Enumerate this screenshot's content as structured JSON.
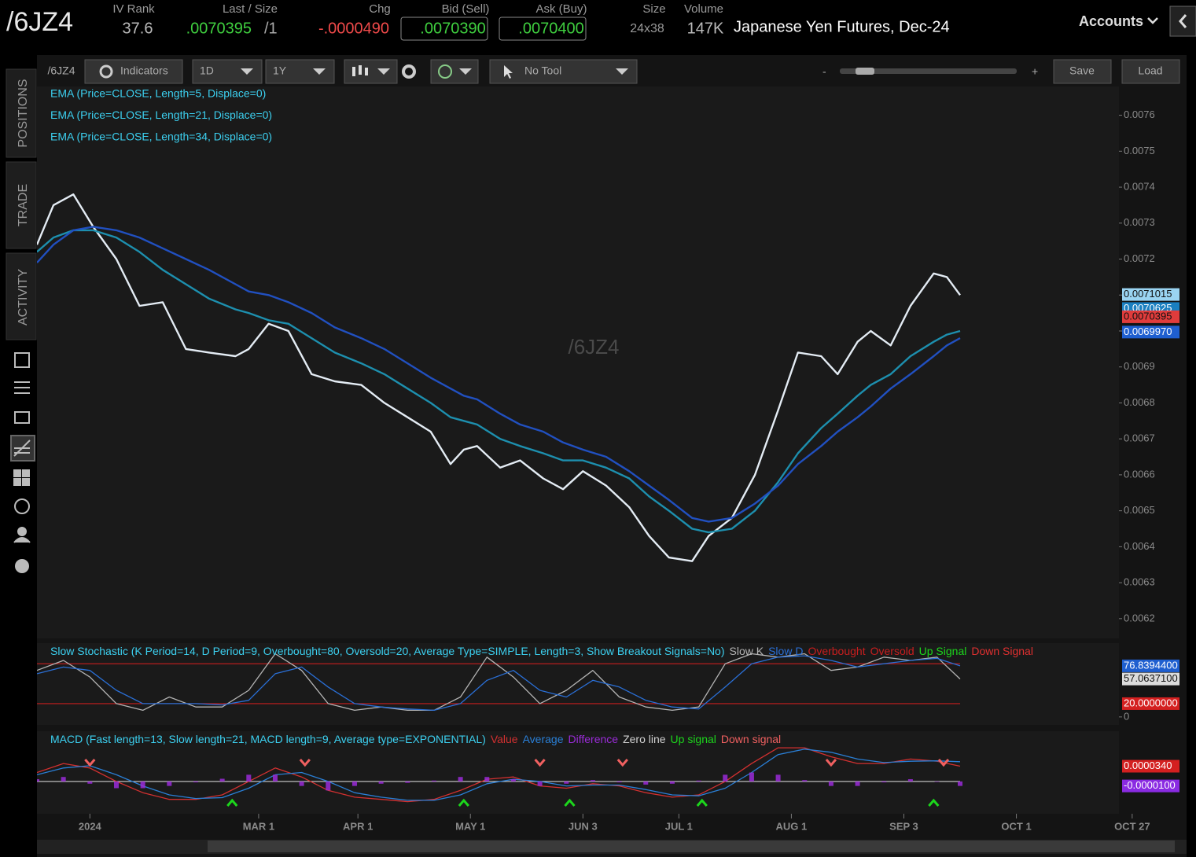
{
  "header": {
    "symbol": "/6JZ4",
    "iv_rank_label": "IV Rank",
    "iv_rank": "37.6",
    "last_size_label": "Last / Size",
    "last": ".0070395",
    "size": "/1",
    "chg_label": "Chg",
    "chg": "-.0000490",
    "bid_label": "Bid (Sell)",
    "bid": ".0070390",
    "ask_label": "Ask (Buy)",
    "ask": ".0070400",
    "size_label": "Size",
    "size_value": "24x38",
    "volume_label": "Volume",
    "volume": "147K",
    "description": "Japanese Yen Futures, Dec-24",
    "accounts": "Accounts"
  },
  "sidebar": {
    "tabs": [
      "POSITIONS",
      "TRADE",
      "ACTIVITY"
    ]
  },
  "toolbar": {
    "symbol": "/6JZ4",
    "indicators": "Indicators",
    "aggregation": "1D",
    "range": "1Y",
    "tool": "No Tool",
    "zoom_minus": "-",
    "zoom_plus": "+",
    "save": "Save",
    "load": "Load"
  },
  "chart_data": [
    {
      "type": "line",
      "watermark": "/6JZ4",
      "x": [
        -16,
        -11,
        -5,
        1,
        8,
        15,
        22,
        29,
        36,
        44,
        48,
        54,
        60,
        67,
        74,
        82,
        89,
        96,
        103,
        109,
        113,
        117,
        124,
        130,
        137,
        143,
        149,
        156,
        163,
        169,
        175,
        182,
        187,
        194,
        201,
        208,
        214,
        221,
        226,
        232,
        236,
        242,
        248,
        255,
        259,
        263
      ],
      "xlim": [
        -16,
        311
      ],
      "xticks": [
        {
          "value": 0,
          "label": "2024"
        },
        {
          "value": 51,
          "label": "MAR 1"
        },
        {
          "value": 81,
          "label": "APR 1"
        },
        {
          "value": 115,
          "label": "MAY 1"
        },
        {
          "value": 149,
          "label": "JUN 3"
        },
        {
          "value": 178,
          "label": "JUL 1"
        },
        {
          "value": 212,
          "label": "AUG 1"
        },
        {
          "value": 246,
          "label": "SEP 3"
        },
        {
          "value": 280,
          "label": "OCT 1"
        },
        {
          "value": 315,
          "label": "OCT 27"
        }
      ],
      "ylim": [
        0.006145,
        0.00768
      ],
      "yticks": [
        0.0062,
        0.0063,
        0.0064,
        0.0065,
        0.0066,
        0.0067,
        0.0068,
        0.0069,
        0.007,
        0.0071,
        0.0072,
        0.0073,
        0.0074,
        0.0075,
        0.0076
      ],
      "series": [
        {
          "name": "EMA (Price=CLOSE, Length=5, Displace=0)",
          "color": "#e4ecf4",
          "values": [
            0.00724,
            0.00735,
            0.00738,
            0.00729,
            0.0072,
            0.00707,
            0.00708,
            0.00695,
            0.00694,
            0.00693,
            0.00695,
            0.00702,
            0.007,
            0.00688,
            0.00686,
            0.00685,
            0.0068,
            0.00676,
            0.00672,
            0.00663,
            0.00667,
            0.00668,
            0.00662,
            0.00664,
            0.00659,
            0.00656,
            0.00661,
            0.00657,
            0.00651,
            0.00643,
            0.00637,
            0.00636,
            0.00643,
            0.00648,
            0.0066,
            0.00678,
            0.00694,
            0.00693,
            0.00688,
            0.00697,
            0.007,
            0.00696,
            0.00707,
            0.00716,
            0.00715,
            0.0071
          ]
        },
        {
          "name": "EMA (Price=CLOSE, Length=21, Displace=0)",
          "color": "#1d8fae",
          "values": [
            0.00722,
            0.00726,
            0.00728,
            0.00728,
            0.00726,
            0.00722,
            0.00717,
            0.00713,
            0.00709,
            0.00706,
            0.00705,
            0.00703,
            0.00702,
            0.00698,
            0.00694,
            0.00691,
            0.00688,
            0.00684,
            0.0068,
            0.00676,
            0.00675,
            0.00674,
            0.0067,
            0.00668,
            0.00666,
            0.00664,
            0.00664,
            0.00662,
            0.00659,
            0.00654,
            0.0065,
            0.00645,
            0.00644,
            0.00645,
            0.0065,
            0.00658,
            0.00666,
            0.00673,
            0.00677,
            0.00682,
            0.00685,
            0.00688,
            0.00693,
            0.00697,
            0.00699,
            0.007
          ]
        },
        {
          "name": "EMA (Price=CLOSE, Length=34, Displace=0)",
          "color": "#2150c0",
          "values": [
            0.00719,
            0.00724,
            0.00728,
            0.00729,
            0.00728,
            0.00726,
            0.00723,
            0.0072,
            0.00717,
            0.00713,
            0.00711,
            0.0071,
            0.00708,
            0.00705,
            0.00701,
            0.00698,
            0.00695,
            0.00691,
            0.00687,
            0.00684,
            0.00682,
            0.00681,
            0.00677,
            0.00674,
            0.00672,
            0.00669,
            0.00667,
            0.00665,
            0.00661,
            0.00657,
            0.00653,
            0.00648,
            0.00647,
            0.00648,
            0.00652,
            0.00657,
            0.00663,
            0.00668,
            0.00672,
            0.00676,
            0.00679,
            0.00684,
            0.00688,
            0.00693,
            0.00696,
            0.00698
          ]
        }
      ],
      "price_labels": [
        {
          "value": 0.0070625,
          "label": "0.0070625",
          "color": "#1a7fc0"
        },
        {
          "value": 0.0071015,
          "label": "0.0071015",
          "color": "#9ad4f2"
        },
        {
          "value": 0.0070395,
          "label": "0.0070395",
          "color": "#e03c3c"
        },
        {
          "value": 0.006997,
          "label": "0.0069970",
          "color": "#1f5fd0"
        }
      ]
    },
    {
      "type": "line",
      "title": "Slow Stochastic (K Period=14, D Period=9, Overbought=80, Oversold=20, Average Type=SIMPLE, Length=3, Show Breakout Signals=No)",
      "x": [
        -16,
        -8,
        0,
        8,
        16,
        24,
        32,
        40,
        48,
        56,
        64,
        72,
        80,
        88,
        96,
        104,
        112,
        120,
        128,
        136,
        144,
        152,
        160,
        168,
        176,
        184,
        192,
        200,
        208,
        216,
        224,
        232,
        240,
        248,
        256,
        263
      ],
      "ylim": [
        -12,
        111
      ],
      "yticks": [
        0
      ],
      "series": [
        {
          "name": "Slow K",
          "color": "#b4b4b4",
          "values": [
            70,
            85,
            60,
            20,
            10,
            30,
            15,
            15,
            40,
            95,
            70,
            20,
            10,
            15,
            10,
            10,
            30,
            90,
            60,
            20,
            40,
            70,
            30,
            15,
            10,
            15,
            80,
            95,
            90,
            95,
            70,
            75,
            90,
            85,
            90,
            57.06371
          ]
        },
        {
          "name": "Slow D",
          "color": "#2a6fd6",
          "values": [
            65,
            75,
            70,
            40,
            20,
            20,
            20,
            18,
            25,
            65,
            75,
            45,
            20,
            15,
            12,
            10,
            20,
            55,
            70,
            40,
            30,
            55,
            45,
            25,
            15,
            12,
            45,
            80,
            90,
            92,
            85,
            75,
            80,
            85,
            88,
            76.83944
          ]
        }
      ],
      "levels": [
        {
          "name": "Overbought",
          "color": "#c81e1e",
          "value": 80
        },
        {
          "name": "Oversold",
          "color": "#c81e1e",
          "value": 20
        }
      ],
      "signals": [
        {
          "name": "Up Signal",
          "color": "#1cd61c"
        },
        {
          "name": "Down Signal",
          "color": "#e03030"
        }
      ],
      "last_labels": [
        {
          "value": 76.83944,
          "label": "76.8394400",
          "color": "#1f5fd0"
        },
        {
          "value": 57.06371,
          "label": "57.0637100",
          "color": "#dcdcdc"
        },
        {
          "value": 20,
          "label": "20.0000000",
          "color": "#d42020"
        }
      ]
    },
    {
      "type": "line",
      "title": "MACD (Fast length=13, Slow length=21, MACD length=9, Average type=EXPONENTIAL)",
      "x": [
        -16,
        -8,
        0,
        8,
        16,
        24,
        32,
        40,
        48,
        56,
        64,
        72,
        80,
        88,
        96,
        104,
        112,
        120,
        128,
        136,
        144,
        152,
        160,
        168,
        176,
        184,
        192,
        200,
        208,
        216,
        224,
        232,
        240,
        248,
        256,
        263
      ],
      "ylim": [
        -7.2e-05,
        0.000112
      ],
      "series": [
        {
          "name": "Value",
          "color": "#d23030",
          "values": [
            2e-05,
            4e-05,
            3e-05,
            0,
            -2.5e-05,
            -4e-05,
            -4e-05,
            -3e-05,
            0,
            3e-05,
            1e-05,
            -2e-05,
            -3.5e-05,
            -4e-05,
            -4.5e-05,
            -4e-05,
            -2e-05,
            5e-06,
            1e-05,
            -1e-05,
            -1.5e-05,
            -5e-06,
            -1e-05,
            -2.5e-05,
            -3.5e-05,
            -3e-05,
            0,
            4e-05,
            7.5e-05,
            7.5e-05,
            5.5e-05,
            4e-05,
            4e-05,
            5e-05,
            4.5e-05,
            3.4e-05
          ]
        },
        {
          "name": "Average",
          "color": "#2a7fd6",
          "values": [
            1.5e-05,
            3e-05,
            3.5e-05,
            1.5e-05,
            -1e-05,
            -3e-05,
            -3.8e-05,
            -3.6e-05,
            -1.5e-05,
            1.5e-05,
            2e-05,
            0,
            -2.5e-05,
            -3.5e-05,
            -4.2e-05,
            -4.2e-05,
            -3e-05,
            -5e-06,
            5e-06,
            0,
            -1e-05,
            -8e-06,
            -8e-06,
            -1.8e-05,
            -3e-05,
            -3.2e-05,
            -1.5e-05,
            2e-05,
            6e-05,
            7.2e-05,
            6.5e-05,
            5e-05,
            4.2e-05,
            4.5e-05,
            4.6e-05,
            4.4e-05
          ]
        },
        {
          "name": "Difference",
          "color": "#9a2bd8",
          "type": "bar",
          "values": [
            5e-06,
            1e-05,
            -5e-06,
            -1.5e-05,
            -1.5e-05,
            -1e-05,
            -2e-06,
            6e-06,
            1.5e-05,
            1.5e-05,
            -1e-05,
            -2e-05,
            -1e-05,
            -5e-06,
            -3e-06,
            2e-06,
            1e-05,
            1e-05,
            5e-06,
            -1e-05,
            -5e-06,
            3e-06,
            -2e-06,
            -7e-06,
            -5e-06,
            2e-06,
            1.5e-05,
            2e-05,
            1.5e-05,
            3e-06,
            -1e-05,
            -1e-05,
            -2e-06,
            5e-06,
            -1e-06,
            -1e-05
          ]
        }
      ],
      "levels": [
        {
          "name": "Zero line",
          "color": "#d0d0d0",
          "value": 0
        }
      ],
      "signals": [
        {
          "name": "Up signal",
          "color": "#1cd61c",
          "signal_x": [
            43,
            113,
            145,
            185,
            255
          ]
        },
        {
          "name": "Down signal",
          "color": "#f06060",
          "signal_x": [
            0,
            65,
            136,
            161,
            224,
            258
          ]
        }
      ],
      "last_labels": [
        {
          "value": 3.4e-05,
          "label": "0.0000340",
          "color": "#d42020"
        },
        {
          "value": -1e-05,
          "label": "-0.0000100",
          "color": "#8a2be2"
        }
      ]
    }
  ]
}
